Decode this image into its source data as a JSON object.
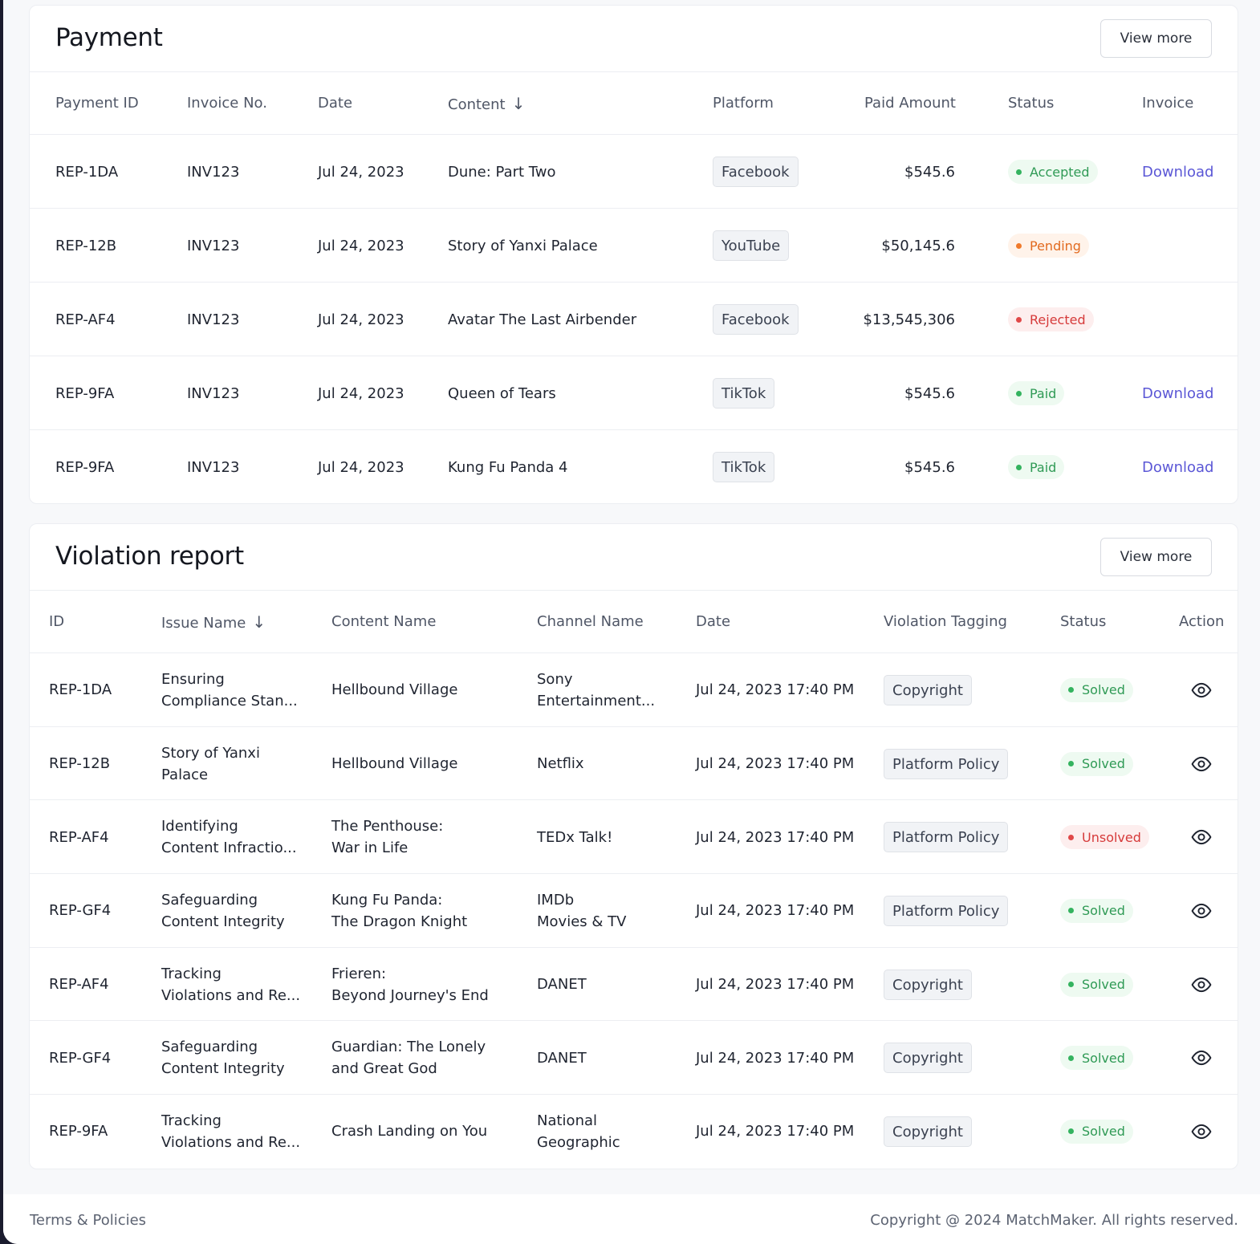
{
  "payment": {
    "title": "Payment",
    "view_more": "View more",
    "columns": [
      "Payment ID",
      "Invoice No.",
      "Date",
      "Content",
      "Platform",
      "Paid Amount",
      "Status",
      "Invoice"
    ],
    "rows": [
      {
        "id": "REP-1DA",
        "invoice": "INV123",
        "date": "Jul 24, 2023",
        "content": "Dune: Part Two",
        "platform": "Facebook",
        "amount": "$545.6",
        "status": "Accepted",
        "invoice_link": "Download"
      },
      {
        "id": "REP-12B",
        "invoice": "INV123",
        "date": "Jul 24, 2023",
        "content": "Story of Yanxi Palace",
        "platform": "YouTube",
        "amount": "$50,145.6",
        "status": "Pending",
        "invoice_link": ""
      },
      {
        "id": "REP-AF4",
        "invoice": "INV123",
        "date": "Jul 24, 2023",
        "content": "Avatar The Last Airbender",
        "platform": "Facebook",
        "amount": "$13,545,306",
        "status": "Rejected",
        "invoice_link": ""
      },
      {
        "id": "REP-9FA",
        "invoice": "INV123",
        "date": "Jul 24, 2023",
        "content": "Queen of Tears",
        "platform": "TikTok",
        "amount": "$545.6",
        "status": "Paid",
        "invoice_link": "Download"
      },
      {
        "id": "REP-9FA",
        "invoice": "INV123",
        "date": "Jul 24, 2023",
        "content": "Kung Fu Panda 4",
        "platform": "TikTok",
        "amount": "$545.6",
        "status": "Paid",
        "invoice_link": "Download"
      }
    ]
  },
  "violation": {
    "title": "Violation report",
    "view_more": "View more",
    "columns": [
      "ID",
      "Issue Name",
      "Content Name",
      "Channel Name",
      "Date",
      "Violation Tagging",
      "Status",
      "Action"
    ],
    "rows": [
      {
        "id": "REP-1DA",
        "issue": [
          "Ensuring",
          "Compliance Stan..."
        ],
        "content": [
          "Hellbound Village"
        ],
        "channel": [
          "Sony",
          "Entertainment..."
        ],
        "date": "Jul 24, 2023 17:40 PM",
        "tag": "Copyright",
        "status": "Solved"
      },
      {
        "id": "REP-12B",
        "issue": [
          "Story of Yanxi",
          "Palace"
        ],
        "content": [
          "Hellbound Village"
        ],
        "channel": [
          "Netflix"
        ],
        "date": "Jul 24, 2023 17:40 PM",
        "tag": "Platform Policy",
        "status": "Solved"
      },
      {
        "id": "REP-AF4",
        "issue": [
          "Identifying",
          "Content Infractio..."
        ],
        "content": [
          "The Penthouse:",
          "War in Life"
        ],
        "channel": [
          "TEDx Talk!"
        ],
        "date": "Jul 24, 2023 17:40 PM",
        "tag": "Platform Policy",
        "status": "Unsolved"
      },
      {
        "id": "REP-GF4",
        "issue": [
          "Safeguarding",
          "Content Integrity"
        ],
        "content": [
          "Kung Fu Panda:",
          "The Dragon Knight"
        ],
        "channel": [
          "IMDb",
          "Movies & TV"
        ],
        "date": "Jul 24, 2023 17:40 PM",
        "tag": "Platform Policy",
        "status": "Solved"
      },
      {
        "id": "REP-AF4",
        "issue": [
          "Tracking",
          "Violations and Re..."
        ],
        "content": [
          "Frieren:",
          "Beyond Journey's End"
        ],
        "channel": [
          "DANET"
        ],
        "date": "Jul 24, 2023 17:40 PM",
        "tag": "Copyright",
        "status": "Solved"
      },
      {
        "id": "REP-GF4",
        "issue": [
          "Safeguarding",
          "Content Integrity"
        ],
        "content": [
          "Guardian: The Lonely",
          "and Great God"
        ],
        "channel": [
          "DANET"
        ],
        "date": "Jul 24, 2023 17:40 PM",
        "tag": "Copyright",
        "status": "Solved"
      },
      {
        "id": "REP-9FA",
        "issue": [
          "Tracking",
          "Violations and Re..."
        ],
        "content": [
          "Crash Landing on You"
        ],
        "channel": [
          "National",
          "Geographic"
        ],
        "date": "Jul 24, 2023 17:40 PM",
        "tag": "Copyright",
        "status": "Solved"
      }
    ],
    "action_icon": "eye-icon"
  },
  "footer": {
    "terms": "Terms & Policies",
    "copyright": "Copyright @ 2024 MatchMaker. All rights reserved."
  },
  "colors": {
    "accent_link": "#5b57d6",
    "status_green": "#34b35f",
    "status_orange": "#f07a2b",
    "status_red": "#e04848"
  }
}
